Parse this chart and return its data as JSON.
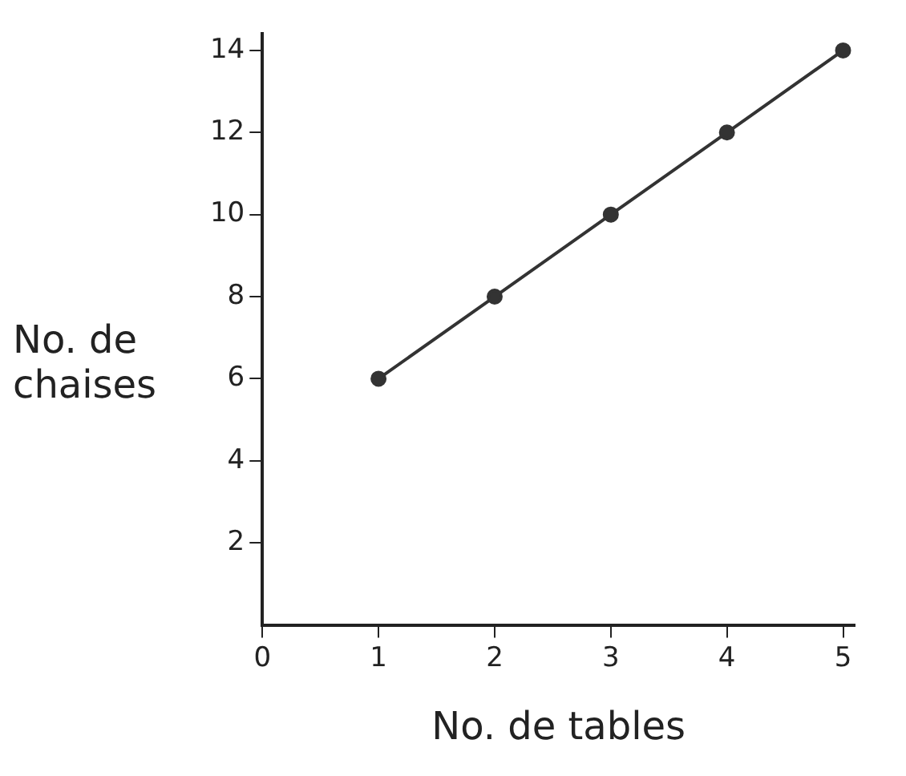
{
  "chart_data": {
    "type": "line",
    "xlabel": "No. de tables",
    "ylabel": "No. de chaises",
    "x": [
      1,
      2,
      3,
      4,
      5
    ],
    "series": [
      {
        "color": "#333333",
        "values": [
          6,
          8,
          10,
          12,
          14
        ]
      }
    ],
    "xlim": [
      0,
      5.1
    ],
    "xticks": [
      0,
      1,
      2,
      3,
      4,
      5
    ],
    "ylim": [
      0,
      14.4
    ],
    "yticks": [
      2,
      4,
      6,
      8,
      10,
      12,
      14
    ],
    "grid": false,
    "legend": false,
    "marker": "circle",
    "line_style": "solid"
  }
}
